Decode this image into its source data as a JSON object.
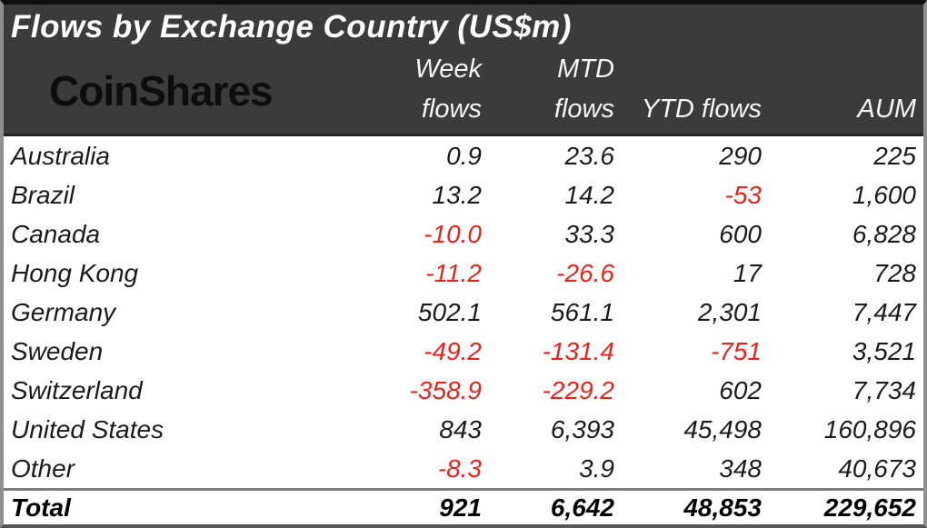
{
  "title": "Flows by Exchange Country (US$m)",
  "brand": {
    "logo_text": "CoinShares"
  },
  "colors": {
    "negative": "#e8241c",
    "header_bg": "#3b3b3b",
    "header_text": "#ffffff",
    "body_text": "#1b1b1b"
  },
  "table": {
    "columns": {
      "week": {
        "line1": "Week",
        "line2": "flows"
      },
      "mtd": {
        "line1": "MTD",
        "line2": "flows"
      },
      "ytd": {
        "line2": "YTD flows"
      },
      "aum": {
        "line2": "AUM"
      }
    },
    "rows": [
      {
        "country": "Australia",
        "week": "0.9",
        "mtd": "23.6",
        "ytd": "290",
        "aum": "225"
      },
      {
        "country": "Brazil",
        "week": "13.2",
        "mtd": "14.2",
        "ytd": "-53",
        "aum": "1,600"
      },
      {
        "country": "Canada",
        "week": "-10.0",
        "mtd": "33.3",
        "ytd": "600",
        "aum": "6,828"
      },
      {
        "country": "Hong Kong",
        "week": "-11.2",
        "mtd": "-26.6",
        "ytd": "17",
        "aum": "728"
      },
      {
        "country": "Germany",
        "week": "502.1",
        "mtd": "561.1",
        "ytd": "2,301",
        "aum": "7,447"
      },
      {
        "country": "Sweden",
        "week": "-49.2",
        "mtd": "-131.4",
        "ytd": "-751",
        "aum": "3,521"
      },
      {
        "country": "Switzerland",
        "week": "-358.9",
        "mtd": "-229.2",
        "ytd": "602",
        "aum": "7,734"
      },
      {
        "country": "United States",
        "week": "843",
        "mtd": "6,393",
        "ytd": "45,498",
        "aum": "160,896"
      },
      {
        "country": "Other",
        "week": "-8.3",
        "mtd": "3.9",
        "ytd": "348",
        "aum": "40,673"
      }
    ],
    "total": {
      "label": "Total",
      "week": "921",
      "mtd": "6,642",
      "ytd": "48,853",
      "aum": "229,652"
    }
  },
  "chart_data": {
    "type": "table",
    "title": "Flows by Exchange Country (US$m)",
    "columns": [
      "Country",
      "Week flows",
      "MTD flows",
      "YTD flows",
      "AUM"
    ],
    "rows": [
      [
        "Australia",
        0.9,
        23.6,
        290,
        225
      ],
      [
        "Brazil",
        13.2,
        14.2,
        -53,
        1600
      ],
      [
        "Canada",
        -10.0,
        33.3,
        600,
        6828
      ],
      [
        "Hong Kong",
        -11.2,
        -26.6,
        17,
        728
      ],
      [
        "Germany",
        502.1,
        561.1,
        2301,
        7447
      ],
      [
        "Sweden",
        -49.2,
        -131.4,
        -751,
        3521
      ],
      [
        "Switzerland",
        -358.9,
        -229.2,
        602,
        7734
      ],
      [
        "United States",
        843,
        6393,
        45498,
        160896
      ],
      [
        "Other",
        -8.3,
        3.9,
        348,
        40673
      ]
    ],
    "total": [
      "Total",
      921,
      6642,
      48853,
      229652
    ],
    "negative_values_shown_in_red": true
  }
}
